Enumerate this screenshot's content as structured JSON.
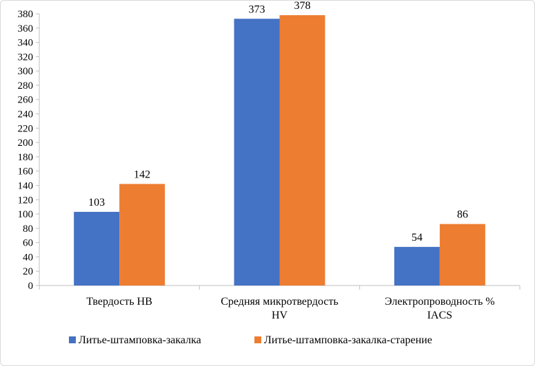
{
  "chart_data": {
    "type": "bar",
    "title": "",
    "xlabel": "",
    "ylabel": "",
    "ylim": [
      0,
      380
    ],
    "ytick_step": 20,
    "grid": false,
    "legend_position": "bottom",
    "categories": [
      [
        "Твердость HB"
      ],
      [
        "Средняя микротвердость",
        "HV"
      ],
      [
        "Электропроводность %",
        "IACS"
      ]
    ],
    "series": [
      {
        "name": "Литье-штамповка-закалка",
        "color": "#4472C4",
        "values": [
          103,
          373,
          54
        ]
      },
      {
        "name": "Литье-штамповка-закалка-старение",
        "color": "#ED7D31",
        "values": [
          142,
          378,
          86
        ]
      }
    ]
  }
}
